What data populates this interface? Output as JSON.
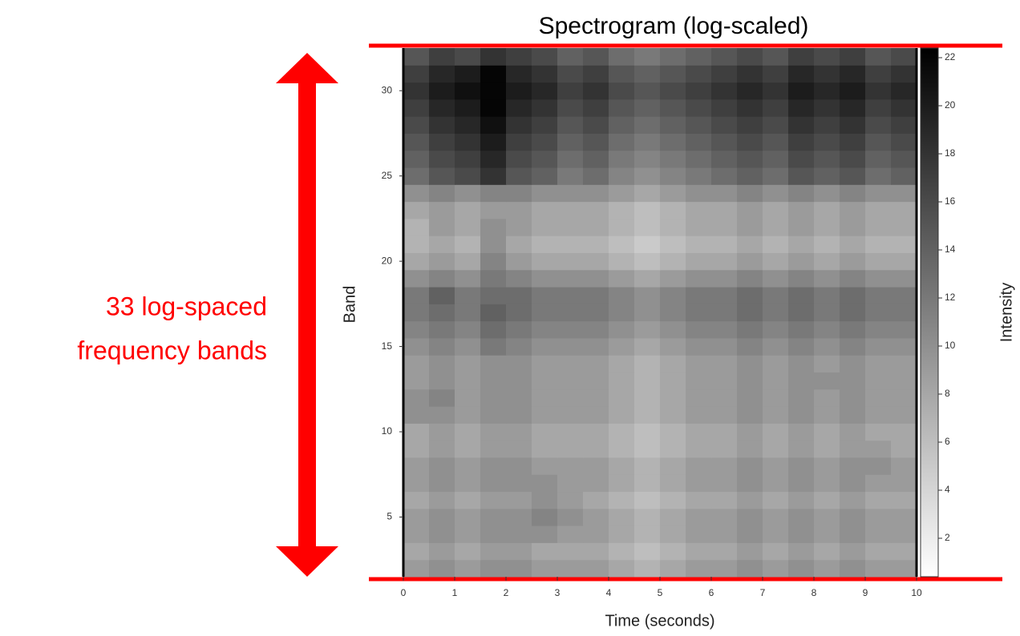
{
  "chart_data": {
    "type": "heatmap",
    "title": "Spectrogram (log-scaled)",
    "annotation_lines": [
      "33 log-spaced",
      "frequency bands"
    ],
    "xlabel": "Time (seconds)",
    "ylabel": "Band",
    "colorbar_label": "Intensity",
    "colormap": "gray_r",
    "x": [
      0.25,
      0.75,
      1.25,
      1.75,
      2.25,
      2.75,
      3.25,
      3.75,
      4.25,
      4.75,
      5.25,
      5.75,
      6.25,
      6.75,
      7.25,
      7.75,
      8.25,
      8.75,
      9.25,
      9.75
    ],
    "y": [
      2,
      3,
      4,
      5,
      6,
      7,
      8,
      9,
      10,
      11,
      12,
      13,
      14,
      15,
      16,
      17,
      18,
      19,
      20,
      21,
      22,
      23,
      24,
      25,
      26,
      27,
      28,
      29,
      30,
      31,
      32
    ],
    "z": [
      [
        9,
        10,
        9,
        10,
        10,
        9,
        9,
        9,
        8,
        7,
        8,
        9,
        9,
        10,
        9,
        10,
        9,
        10,
        9,
        9
      ],
      [
        8,
        9,
        8,
        9,
        9,
        8,
        8,
        8,
        7,
        6,
        7,
        8,
        8,
        9,
        8,
        9,
        8,
        9,
        8,
        8
      ],
      [
        9,
        10,
        9,
        10,
        10,
        10,
        9,
        9,
        8,
        7,
        8,
        9,
        9,
        10,
        9,
        10,
        9,
        10,
        9,
        9
      ],
      [
        9,
        10,
        9,
        10,
        10,
        11,
        10,
        9,
        8,
        7,
        8,
        9,
        9,
        10,
        9,
        10,
        9,
        10,
        9,
        9
      ],
      [
        8,
        9,
        8,
        9,
        9,
        10,
        9,
        8,
        7,
        6,
        7,
        8,
        8,
        9,
        8,
        9,
        8,
        9,
        8,
        8
      ],
      [
        9,
        10,
        9,
        10,
        10,
        10,
        9,
        9,
        8,
        7,
        8,
        9,
        9,
        10,
        9,
        10,
        9,
        10,
        9,
        9
      ],
      [
        9,
        10,
        9,
        10,
        10,
        9,
        9,
        9,
        8,
        7,
        8,
        9,
        9,
        10,
        9,
        10,
        9,
        10,
        10,
        9
      ],
      [
        8,
        9,
        8,
        9,
        9,
        8,
        8,
        8,
        7,
        6,
        7,
        8,
        8,
        9,
        8,
        9,
        8,
        9,
        9,
        8
      ],
      [
        8,
        9,
        8,
        9,
        9,
        8,
        8,
        8,
        7,
        6,
        7,
        8,
        8,
        9,
        8,
        9,
        8,
        9,
        8,
        8
      ],
      [
        10,
        10,
        9,
        10,
        10,
        9,
        9,
        9,
        8,
        7,
        8,
        9,
        9,
        10,
        9,
        10,
        9,
        10,
        9,
        9
      ],
      [
        10,
        11,
        9,
        10,
        10,
        9,
        9,
        9,
        8,
        7,
        8,
        9,
        9,
        10,
        9,
        10,
        9,
        10,
        9,
        9
      ],
      [
        9,
        10,
        9,
        10,
        10,
        9,
        9,
        9,
        8,
        7,
        8,
        9,
        9,
        10,
        9,
        10,
        10,
        10,
        9,
        9
      ],
      [
        9,
        10,
        9,
        10,
        10,
        9,
        9,
        9,
        8,
        7,
        8,
        9,
        9,
        10,
        9,
        10,
        9,
        10,
        9,
        9
      ],
      [
        10,
        11,
        10,
        12,
        11,
        10,
        10,
        10,
        9,
        8,
        9,
        10,
        10,
        11,
        10,
        11,
        10,
        11,
        10,
        10
      ],
      [
        11,
        12,
        11,
        13,
        12,
        11,
        11,
        11,
        10,
        9,
        10,
        11,
        11,
        12,
        11,
        12,
        11,
        12,
        11,
        11
      ],
      [
        12,
        13,
        12,
        14,
        13,
        12,
        12,
        12,
        11,
        10,
        11,
        12,
        12,
        13,
        12,
        13,
        12,
        13,
        12,
        12
      ],
      [
        12,
        14,
        12,
        13,
        13,
        12,
        12,
        12,
        11,
        10,
        11,
        12,
        12,
        13,
        12,
        13,
        12,
        13,
        12,
        12
      ],
      [
        10,
        11,
        10,
        12,
        11,
        10,
        10,
        10,
        9,
        8,
        9,
        10,
        10,
        11,
        10,
        11,
        10,
        11,
        10,
        10
      ],
      [
        8,
        9,
        8,
        11,
        9,
        8,
        8,
        8,
        7,
        6,
        7,
        8,
        8,
        9,
        8,
        9,
        8,
        9,
        8,
        8
      ],
      [
        7,
        8,
        7,
        10,
        8,
        7,
        7,
        7,
        6,
        5,
        6,
        7,
        7,
        8,
        7,
        8,
        7,
        8,
        7,
        7
      ],
      [
        7,
        9,
        8,
        10,
        9,
        8,
        8,
        8,
        7,
        6,
        7,
        8,
        8,
        9,
        8,
        9,
        8,
        9,
        8,
        8
      ],
      [
        8,
        9,
        8,
        9,
        9,
        8,
        8,
        8,
        7,
        6,
        7,
        8,
        8,
        9,
        8,
        9,
        8,
        9,
        8,
        8
      ],
      [
        10,
        11,
        10,
        11,
        11,
        10,
        10,
        10,
        9,
        8,
        9,
        10,
        10,
        11,
        10,
        11,
        10,
        11,
        10,
        10
      ],
      [
        13,
        15,
        16,
        18,
        15,
        14,
        12,
        13,
        11,
        10,
        11,
        12,
        13,
        14,
        13,
        15,
        14,
        15,
        13,
        14
      ],
      [
        14,
        16,
        17,
        19,
        16,
        15,
        13,
        14,
        12,
        11,
        12,
        13,
        14,
        15,
        14,
        16,
        15,
        16,
        14,
        15
      ],
      [
        15,
        17,
        18,
        20,
        17,
        16,
        14,
        15,
        13,
        12,
        13,
        14,
        15,
        16,
        15,
        17,
        16,
        17,
        15,
        16
      ],
      [
        16,
        18,
        19,
        21,
        18,
        17,
        15,
        16,
        14,
        13,
        14,
        15,
        16,
        17,
        16,
        18,
        17,
        18,
        16,
        17
      ],
      [
        17,
        19,
        20,
        22,
        19,
        18,
        16,
        17,
        15,
        14,
        15,
        16,
        17,
        18,
        17,
        19,
        18,
        19,
        17,
        18
      ],
      [
        18,
        20,
        21,
        22,
        20,
        19,
        17,
        18,
        16,
        15,
        16,
        17,
        18,
        19,
        18,
        20,
        19,
        20,
        18,
        19
      ],
      [
        17,
        19,
        20,
        22,
        19,
        18,
        16,
        17,
        15,
        14,
        15,
        16,
        17,
        18,
        17,
        19,
        18,
        19,
        17,
        18
      ],
      [
        15,
        17,
        16,
        18,
        17,
        16,
        14,
        15,
        13,
        12,
        13,
        14,
        15,
        16,
        15,
        17,
        16,
        17,
        15,
        16
      ]
    ],
    "xlim": [
      0,
      10
    ],
    "xticks": [
      0,
      1,
      2,
      3,
      4,
      5,
      6,
      7,
      8,
      9,
      10
    ],
    "ylim": [
      1.5,
      32.5
    ],
    "yticks": [
      5,
      10,
      15,
      20,
      25,
      30
    ],
    "clim": [
      0.4,
      22.4
    ],
    "cticks": [
      2,
      4,
      6,
      8,
      10,
      12,
      14,
      16,
      18,
      20,
      22
    ],
    "annotation_color": "#ff0000"
  }
}
